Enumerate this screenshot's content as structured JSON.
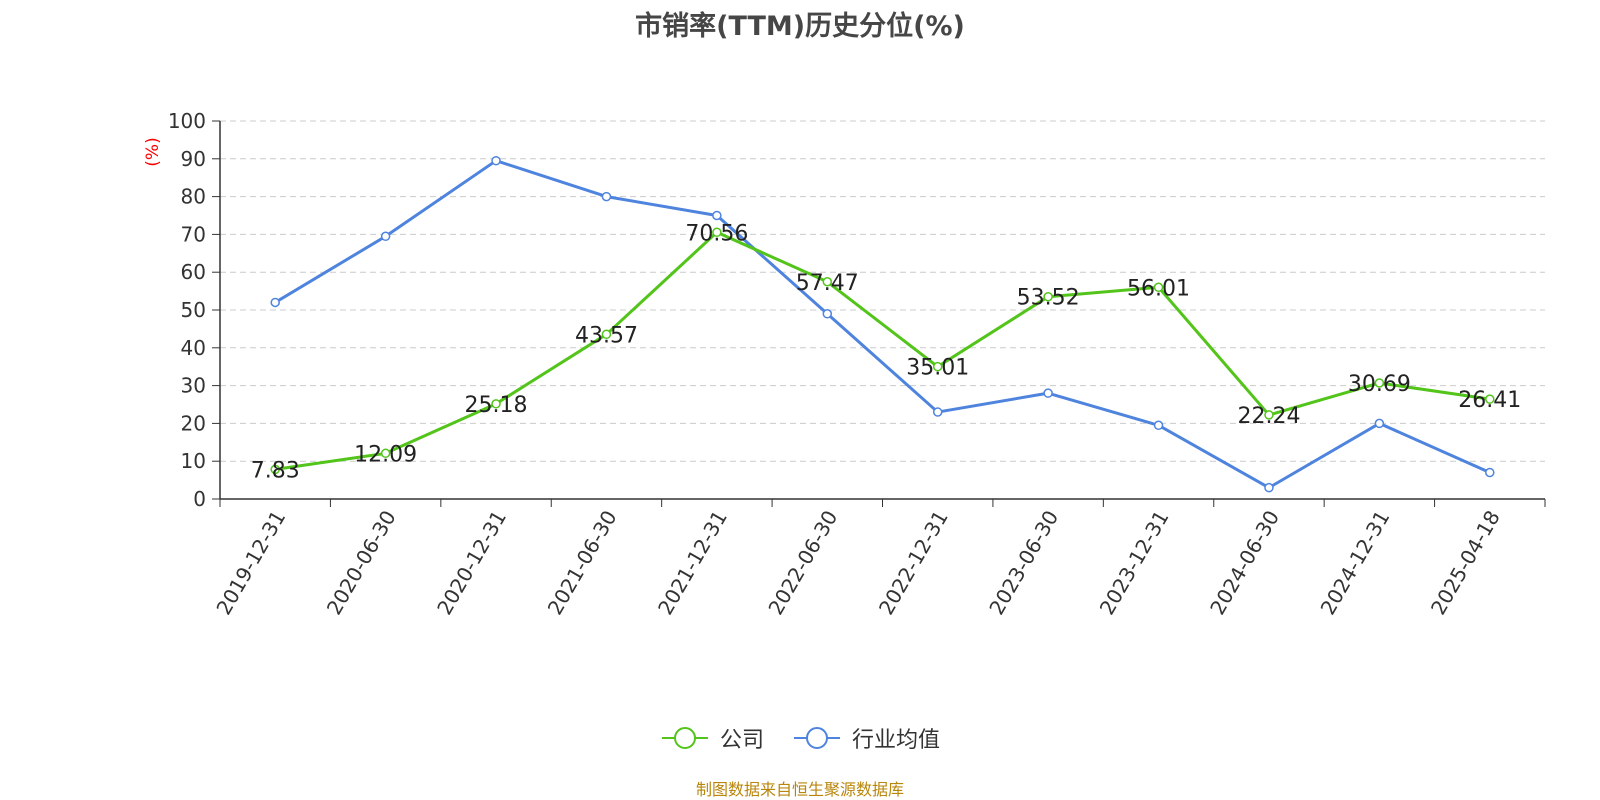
{
  "chart_data": {
    "type": "line",
    "title": "市销率(TTM)历史分位(%)",
    "ylabel": "(%)",
    "ylim": [
      0,
      100
    ],
    "yticks": [
      0,
      10,
      20,
      30,
      40,
      50,
      60,
      70,
      80,
      90,
      100
    ],
    "categories": [
      "2019-12-31",
      "2020-06-30",
      "2020-12-31",
      "2021-06-30",
      "2021-12-31",
      "2022-06-30",
      "2022-12-31",
      "2023-06-30",
      "2023-12-31",
      "2024-06-30",
      "2024-12-31",
      "2025-04-18"
    ],
    "series": [
      {
        "name": "公司",
        "color": "#52c41a",
        "values": [
          7.83,
          12.09,
          25.18,
          43.57,
          70.56,
          57.47,
          35.01,
          53.52,
          56.01,
          22.24,
          30.69,
          26.41
        ],
        "labels": [
          "7.83",
          "12.09",
          "25.18",
          "43.57",
          "70.56",
          "57.47",
          "35.01",
          "53.52",
          "56.01",
          "22.24",
          "30.69",
          "26.41"
        ]
      },
      {
        "name": "行业均值",
        "color": "#4e84de",
        "values": [
          52,
          69.5,
          89.5,
          80,
          75,
          49,
          23,
          28,
          19.5,
          3,
          20,
          7
        ]
      }
    ],
    "grid": true,
    "legend_position": "bottom-center"
  },
  "source_note": "制图数据来自恒生聚源数据库",
  "colors": {
    "axis": "#333333",
    "grid": "#cccccc",
    "ylabel": "#ff0000",
    "source": "#b8860b"
  }
}
